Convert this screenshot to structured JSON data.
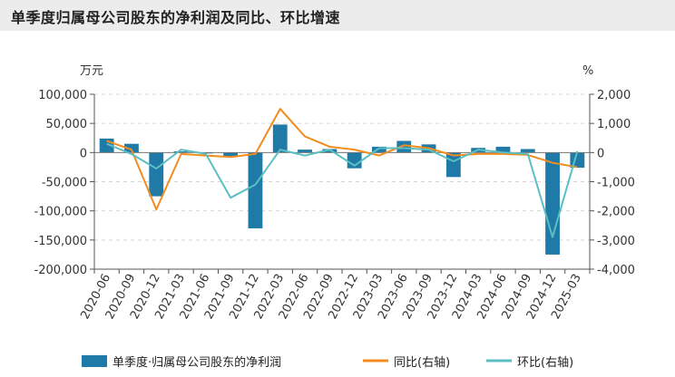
{
  "title": "单季度归属母公司股东的净利润及同比、环比增速",
  "chart_data": {
    "type": "bar",
    "categories": [
      "2020-06",
      "2020-09",
      "2020-12",
      "2021-03",
      "2021-06",
      "2021-09",
      "2021-12",
      "2022-03",
      "2022-06",
      "2022-09",
      "2022-12",
      "2023-03",
      "2023-06",
      "2023-09",
      "2023-12",
      "2024-03",
      "2024-06",
      "2024-09",
      "2024-12",
      "2025-03"
    ],
    "left_axis": {
      "unit": "万元",
      "ylim": [
        -200000,
        100000
      ],
      "ticks": [
        100000,
        50000,
        0,
        -50000,
        -100000,
        -150000,
        -200000
      ],
      "tick_labels": [
        "100,000",
        "50,000",
        "0",
        "-50,000",
        "-100,000",
        "-150,000",
        "-200,000"
      ]
    },
    "right_axis": {
      "unit": "%",
      "ylim": [
        -4000,
        2000
      ],
      "ticks": [
        2000,
        1000,
        0,
        -1000,
        -2000,
        -3000,
        -4000
      ],
      "tick_labels": [
        "2,000",
        "1,000",
        "0",
        "-1,000",
        "-2,000",
        "-3,000",
        "-4,000"
      ]
    },
    "grid": true,
    "legend_position": "bottom",
    "series": [
      {
        "name": "单季度·归属母公司股东的净利润",
        "type": "bar",
        "axis": "left",
        "color": "#1f7aa8",
        "values": [
          24000,
          15000,
          -75000,
          2000,
          -1500,
          -8000,
          -130000,
          48000,
          5000,
          6000,
          -27000,
          10000,
          20000,
          14000,
          -42000,
          8000,
          10000,
          6000,
          -175000,
          -26000
        ]
      },
      {
        "name": "同比(右轴)",
        "type": "line",
        "axis": "right",
        "color": "#f28c1e",
        "values": [
          400,
          100,
          -1950,
          -50,
          -100,
          -150,
          -50,
          1500,
          550,
          200,
          100,
          -100,
          250,
          150,
          -100,
          -50,
          -50,
          -80,
          -350,
          -500
        ]
      },
      {
        "name": "环比(右轴)",
        "type": "line",
        "axis": "right",
        "color": "#5bbfc2",
        "values": [
          300,
          -50,
          -550,
          100,
          -50,
          -1550,
          -1100,
          100,
          -100,
          100,
          -450,
          150,
          150,
          100,
          -300,
          100,
          0,
          -50,
          -2900,
          50
        ]
      }
    ]
  }
}
